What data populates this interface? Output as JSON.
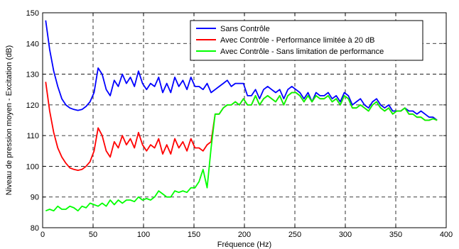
{
  "chart_data": {
    "type": "line",
    "title": "",
    "xlabel": "Fréquence (Hz)",
    "ylabel": "Niveau de pression moyen - Excitation (dB)",
    "xlim": [
      0,
      400
    ],
    "ylim": [
      80,
      150
    ],
    "xticks": [
      0,
      50,
      100,
      150,
      200,
      250,
      300,
      350,
      400
    ],
    "yticks": [
      80,
      90,
      100,
      110,
      120,
      130,
      140,
      150
    ],
    "grid": true,
    "legend_position": "top-right",
    "series": [
      {
        "name": "Sans Contrôle",
        "color": "#0000ff",
        "x": [
          3,
          7,
          11,
          15,
          19,
          23,
          27,
          31,
          35,
          39,
          43,
          47,
          51,
          55,
          59,
          63,
          67,
          71,
          75,
          79,
          83,
          87,
          91,
          95,
          99,
          103,
          107,
          111,
          115,
          119,
          123,
          127,
          131,
          135,
          139,
          143,
          147,
          151,
          155,
          159,
          163,
          167,
          171,
          175,
          179,
          183,
          187,
          191,
          195,
          199,
          203,
          207,
          211,
          215,
          219,
          223,
          227,
          231,
          235,
          239,
          243,
          247,
          251,
          255,
          259,
          263,
          267,
          271,
          275,
          279,
          283,
          287,
          291,
          295,
          299,
          303,
          307,
          311,
          315,
          319,
          323,
          327,
          331,
          335,
          339,
          343,
          347,
          351,
          355,
          359,
          363,
          367,
          371,
          375,
          379,
          383,
          387,
          391
        ],
        "y": [
          147.5,
          138,
          131,
          126,
          122,
          120,
          119,
          118.5,
          118.2,
          118.5,
          119.5,
          121,
          124,
          132,
          130,
          125,
          123,
          128,
          126,
          130,
          127,
          129,
          126,
          131,
          127,
          125,
          127,
          126,
          129,
          124,
          127,
          124,
          129,
          126,
          128,
          125,
          129,
          126,
          126,
          125,
          127,
          124,
          125,
          126,
          127,
          128,
          126,
          127,
          127,
          127,
          123,
          123,
          125,
          122,
          125,
          126,
          125,
          124,
          125,
          122,
          125,
          126,
          125,
          124,
          122,
          124,
          121,
          124,
          123,
          123,
          124,
          122,
          123,
          121,
          124,
          123,
          120,
          121,
          122,
          120,
          119,
          121,
          122,
          120,
          119,
          120,
          118,
          118,
          118,
          119,
          118,
          118,
          117,
          118,
          117,
          116,
          116,
          115
        ]
      },
      {
        "name": "Avec Contrôle - Performance limitée à 20 dB",
        "color": "#ff0000",
        "x": [
          3,
          7,
          11,
          15,
          19,
          23,
          27,
          31,
          35,
          39,
          43,
          47,
          51,
          55,
          59,
          63,
          67,
          71,
          75,
          79,
          83,
          87,
          91,
          95,
          99,
          103,
          107,
          111,
          115,
          119,
          123,
          127,
          131,
          135,
          139,
          143,
          147,
          151,
          155,
          159,
          163,
          167,
          171,
          175,
          179,
          183,
          187,
          191,
          195,
          199,
          203,
          207,
          211,
          215,
          219,
          223,
          227,
          231,
          235,
          239,
          243,
          247,
          251,
          255,
          259,
          263,
          267,
          271,
          275,
          279,
          283,
          287,
          291,
          295,
          299,
          303,
          307,
          311,
          315,
          319,
          323,
          327,
          331,
          335,
          339,
          343,
          347,
          351,
          355,
          359,
          363,
          367,
          371,
          375,
          379,
          383,
          387,
          391
        ],
        "y": [
          127.5,
          118,
          111,
          106,
          103,
          101,
          99.5,
          99,
          98.7,
          99,
          100,
          101.5,
          105,
          112.5,
          110,
          105,
          103,
          108,
          106,
          110,
          107,
          109,
          106,
          111,
          107,
          105,
          107,
          106,
          109,
          104,
          107,
          104,
          109,
          106,
          108,
          105,
          109,
          106,
          106,
          105,
          107,
          108,
          117,
          117,
          119,
          120,
          120,
          121,
          120,
          122,
          120,
          120,
          123,
          120,
          122,
          123,
          122,
          121,
          123,
          120,
          123,
          124,
          124,
          123,
          121,
          123,
          121,
          123,
          122,
          122,
          123,
          121,
          122,
          120,
          123,
          122,
          119,
          119,
          120,
          119,
          118,
          120,
          121,
          119,
          118,
          119,
          117,
          118,
          118,
          119,
          117,
          117,
          116,
          116,
          115,
          115,
          115.5,
          115
        ]
      },
      {
        "name": "Avec Contrôle - Sans limitation de performance",
        "color": "#00ff00",
        "x": [
          3,
          7,
          11,
          15,
          19,
          23,
          27,
          31,
          35,
          39,
          43,
          47,
          51,
          55,
          59,
          63,
          67,
          71,
          75,
          79,
          83,
          87,
          91,
          95,
          99,
          103,
          107,
          111,
          115,
          119,
          123,
          127,
          131,
          135,
          139,
          143,
          147,
          151,
          155,
          159,
          163,
          167,
          171,
          175,
          179,
          183,
          187,
          191,
          195,
          199,
          203,
          207,
          211,
          215,
          219,
          223,
          227,
          231,
          235,
          239,
          243,
          247,
          251,
          255,
          259,
          263,
          267,
          271,
          275,
          279,
          283,
          287,
          291,
          295,
          299,
          303,
          307,
          311,
          315,
          319,
          323,
          327,
          331,
          335,
          339,
          343,
          347,
          351,
          355,
          359,
          363,
          367,
          371,
          375,
          379,
          383,
          387,
          391
        ],
        "y": [
          85.5,
          86,
          85.5,
          87,
          86,
          86,
          87,
          86.5,
          85.5,
          87,
          86.5,
          88,
          87.5,
          87,
          88,
          87,
          89,
          87.5,
          89,
          88,
          89,
          89,
          88.5,
          90,
          89,
          89.5,
          89,
          90,
          92,
          91,
          90,
          90,
          92,
          91.5,
          92,
          91.5,
          93,
          93,
          95,
          99,
          93,
          106,
          117,
          117,
          119,
          120,
          120,
          121,
          120,
          122,
          120,
          120,
          123,
          120,
          122,
          123,
          122,
          121,
          123,
          120,
          123,
          124,
          124,
          123,
          121,
          123,
          121,
          123,
          122,
          122,
          123,
          121,
          122,
          120,
          123,
          122,
          119,
          119,
          120,
          119,
          118,
          120,
          121,
          119,
          118,
          119,
          117,
          118,
          118,
          119,
          117,
          117,
          116,
          116,
          115,
          115,
          115.5,
          115
        ]
      }
    ]
  }
}
